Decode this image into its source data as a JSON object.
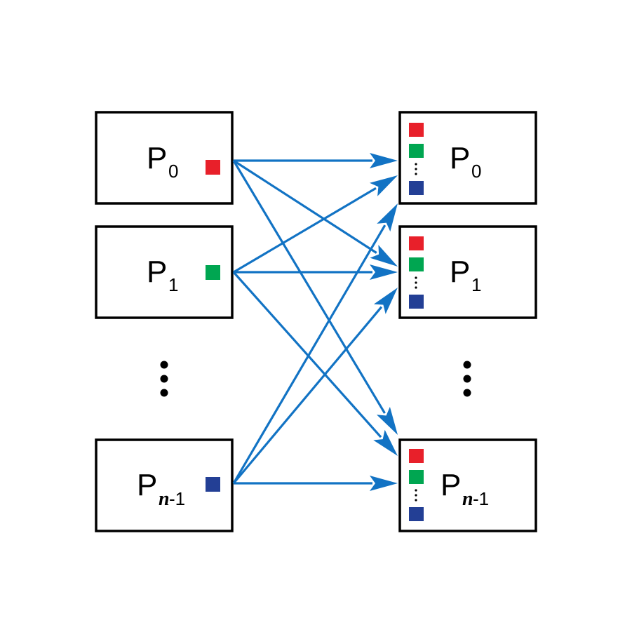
{
  "colors": {
    "arrow": "#1273c4",
    "red": "#e8202a",
    "green": "#00a651",
    "blue": "#233f95"
  },
  "left": {
    "p0": {
      "main": "P",
      "sub": "0",
      "color": "red"
    },
    "p1": {
      "main": "P",
      "sub": "1",
      "color": "green"
    },
    "pn": {
      "main": "P",
      "sub_var": "n",
      "sub_rest": "-1",
      "color": "blue"
    }
  },
  "right": {
    "p0": {
      "main": "P",
      "sub": "0"
    },
    "p1": {
      "main": "P",
      "sub": "1"
    },
    "pn": {
      "main": "P",
      "sub_var": "n",
      "sub_rest": "-1"
    }
  },
  "icons": [
    "vertical-ellipsis-icon",
    "arrowhead-icon",
    "square-icon"
  ]
}
